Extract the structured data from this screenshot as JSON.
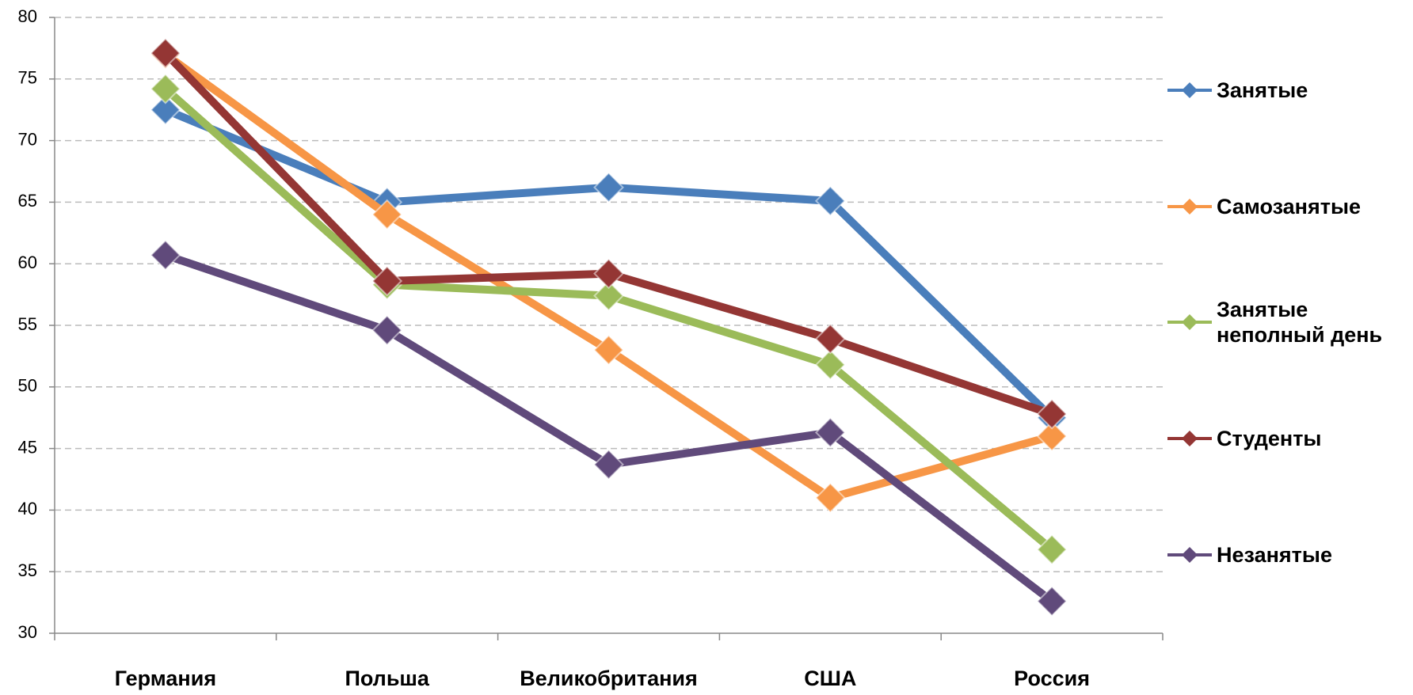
{
  "chart_data": {
    "type": "line",
    "categories": [
      "Германия",
      "Польша",
      "Великобритания",
      "США",
      "Россия"
    ],
    "series": [
      {
        "name": "Занятые",
        "color": "#4a7ebb",
        "values": [
          72.5,
          65,
          66.2,
          65.1,
          47.5
        ]
      },
      {
        "name": "Самозанятые",
        "color": "#f79646",
        "values": [
          77,
          64,
          53,
          41,
          46
        ]
      },
      {
        "name": "Занятые неполный день",
        "color": "#9bbb59",
        "values": [
          74.2,
          58.3,
          57.4,
          51.8,
          36.8
        ]
      },
      {
        "name": "Студенты",
        "color": "#943634",
        "values": [
          77.1,
          58.6,
          59.2,
          53.9,
          47.8
        ]
      },
      {
        "name": "Незанятые",
        "color": "#604a7b",
        "values": [
          60.7,
          54.6,
          43.7,
          46.3,
          32.6
        ]
      }
    ],
    "ylim": [
      30,
      80
    ],
    "yticks": [
      30,
      35,
      40,
      45,
      50,
      55,
      60,
      65,
      70,
      75,
      80
    ],
    "grid": true,
    "legend": "right"
  }
}
